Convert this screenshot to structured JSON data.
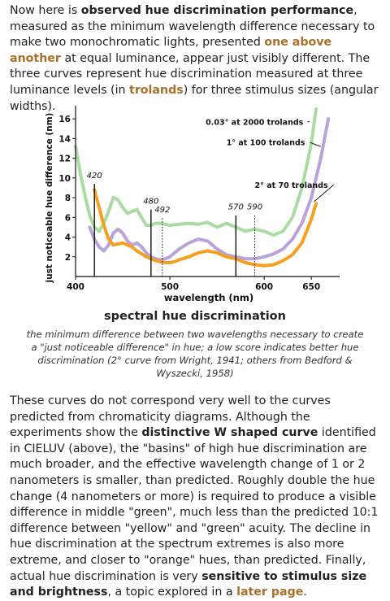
{
  "intro": {
    "t1": "Now here is ",
    "b1": "observed hue discrimination performance",
    "t2": ", measured as the minimum wavelength difference necessary to make two monochromatic lights, presented ",
    "b2": "one above another",
    "t3": " at equal luminance, appear just visibly different. The three curves represent hue discrimination measured at three luminance levels (in ",
    "b3": "trolands",
    "t4": ") for three stimulus sizes (angular widths)."
  },
  "colors": {
    "accent": "#a8702b",
    "green": "#a8dca0",
    "purple": "#b9a2dc",
    "orange": "#f4a020"
  },
  "chart_data": {
    "type": "line",
    "xlabel": "wavelength (nm)",
    "ylabel": "just noticeable hue difference (nm)",
    "xlim": [
      400,
      680
    ],
    "ylim": [
      0,
      17
    ],
    "xticks": [
      "400",
      "500",
      "600",
      "650"
    ],
    "yticks": [
      "2",
      "4",
      "6",
      "8",
      "10",
      "12",
      "14",
      "16"
    ],
    "grid": false,
    "series": [
      {
        "name": "0.03° at 2000 trolands",
        "color": "#a8dca0",
        "x": [
          400,
          405,
          410,
          415,
          420,
          425,
          430,
          435,
          440,
          445,
          450,
          455,
          460,
          465,
          470,
          475,
          480,
          485,
          490,
          495,
          500,
          510,
          520,
          530,
          540,
          550,
          560,
          570,
          580,
          590,
          600,
          610,
          620,
          630,
          640,
          650,
          655
        ],
        "y": [
          13.2,
          10.5,
          8.2,
          6.2,
          5.0,
          4.6,
          5.4,
          6.6,
          8.0,
          7.8,
          7.0,
          6.4,
          6.6,
          6.8,
          6.0,
          5.2,
          5.2,
          5.4,
          5.4,
          5.3,
          5.2,
          5.3,
          5.4,
          5.3,
          5.5,
          5.0,
          5.4,
          5.0,
          4.6,
          4.8,
          4.6,
          4.2,
          4.6,
          6.0,
          9.0,
          13.5,
          17.0
        ]
      },
      {
        "name": "1° at 100 trolands",
        "color": "#b9a2dc",
        "x": [
          415,
          420,
          425,
          430,
          435,
          440,
          445,
          450,
          455,
          460,
          465,
          470,
          475,
          480,
          485,
          490,
          495,
          500,
          505,
          510,
          520,
          530,
          540,
          550,
          560,
          570,
          580,
          590,
          600,
          610,
          620,
          630,
          640,
          650,
          660,
          668
        ],
        "y": [
          5.0,
          3.8,
          3.0,
          2.6,
          3.2,
          4.4,
          4.8,
          4.4,
          3.6,
          3.2,
          3.4,
          3.0,
          2.4,
          2.0,
          1.8,
          1.7,
          1.8,
          2.0,
          2.4,
          2.8,
          3.4,
          3.8,
          3.6,
          2.8,
          2.2,
          2.0,
          1.8,
          1.8,
          2.0,
          2.3,
          2.8,
          3.8,
          5.4,
          8.0,
          12.0,
          16.0
        ]
      },
      {
        "name": "2° at 70 trolands",
        "color": "#f4a020",
        "x": [
          420,
          425,
          430,
          435,
          440,
          445,
          450,
          455,
          460,
          465,
          470,
          475,
          480,
          485,
          490,
          495,
          500,
          505,
          510,
          520,
          530,
          540,
          550,
          560,
          570,
          580,
          590,
          600,
          610,
          620,
          630,
          640,
          650,
          655
        ],
        "y": [
          8.8,
          7.0,
          5.2,
          3.8,
          3.2,
          3.3,
          3.4,
          3.2,
          3.0,
          2.6,
          2.3,
          2.0,
          1.8,
          1.6,
          1.5,
          1.4,
          1.4,
          1.5,
          1.7,
          2.0,
          2.4,
          2.6,
          2.4,
          2.0,
          1.8,
          1.4,
          1.2,
          1.1,
          1.2,
          1.6,
          2.2,
          3.4,
          5.8,
          7.4
        ]
      }
    ],
    "markers": [
      {
        "label": "420",
        "x": 420,
        "y_top": 9.4,
        "y_label": 10.0,
        "style": "solid"
      },
      {
        "label": "480",
        "x": 480,
        "y_top": 6.8,
        "y_label": 7.4,
        "style": "solid"
      },
      {
        "label": "492",
        "x": 492,
        "y_top": 5.9,
        "y_label": 6.5,
        "style": "dotted"
      },
      {
        "label": "570",
        "x": 570,
        "y_top": 6.2,
        "y_label": 6.8,
        "style": "solid"
      },
      {
        "label": "590",
        "x": 590,
        "y_top": 6.2,
        "y_label": 6.8,
        "style": "dotted"
      }
    ],
    "annotations": [
      {
        "text": "0.03° at 2000 trolands",
        "text_x": 538,
        "text_y": 15.7,
        "arrow_x": 648,
        "arrow_y": 15.7
      },
      {
        "text": "1° at 100 trolands",
        "text_x": 560,
        "text_y": 13.6,
        "arrow_x": 660,
        "arrow_y": 13.2
      },
      {
        "text": "2° at 70 trolands",
        "text_x": 590,
        "text_y": 9.3,
        "arrow_x": 653,
        "arrow_y": 7.6
      }
    ]
  },
  "caption": {
    "title": "spectral hue discrimination",
    "text": "the minimum difference between two wavelengths necessary to create a \"just noticeable difference\" in hue; a low score indicates better hue discrimination (2° curve from Wright, 1941; others from Bedford & Wyszecki, 1958)"
  },
  "body2": {
    "t1": "These curves do not correspond very well to the curves predicted from chromaticity diagrams. Although the experiments show the ",
    "b1": "distinctive W shaped curve",
    "t2": " identified in CIELUV (above), the \"basins\" of high hue discrimination are much broader, and the effective wavelength change of 1 or 2 nanometers is smaller, than predicted. Roughly double the hue change (4 nanometers or more) is required to produce a visible difference in middle \"green\", much less than the predicted 10:1 difference between \"yellow\" and \"green\" acuity. The decline in hue discrimination at the spectrum extremes is also more extreme, and closer to \"orange\" hues, than predicted. Finally, actual hue discrimination is very ",
    "b2": "sensitive to stimulus size and brightness",
    "t3": ", a topic explored in a ",
    "b3": "later page",
    "t4": "."
  }
}
